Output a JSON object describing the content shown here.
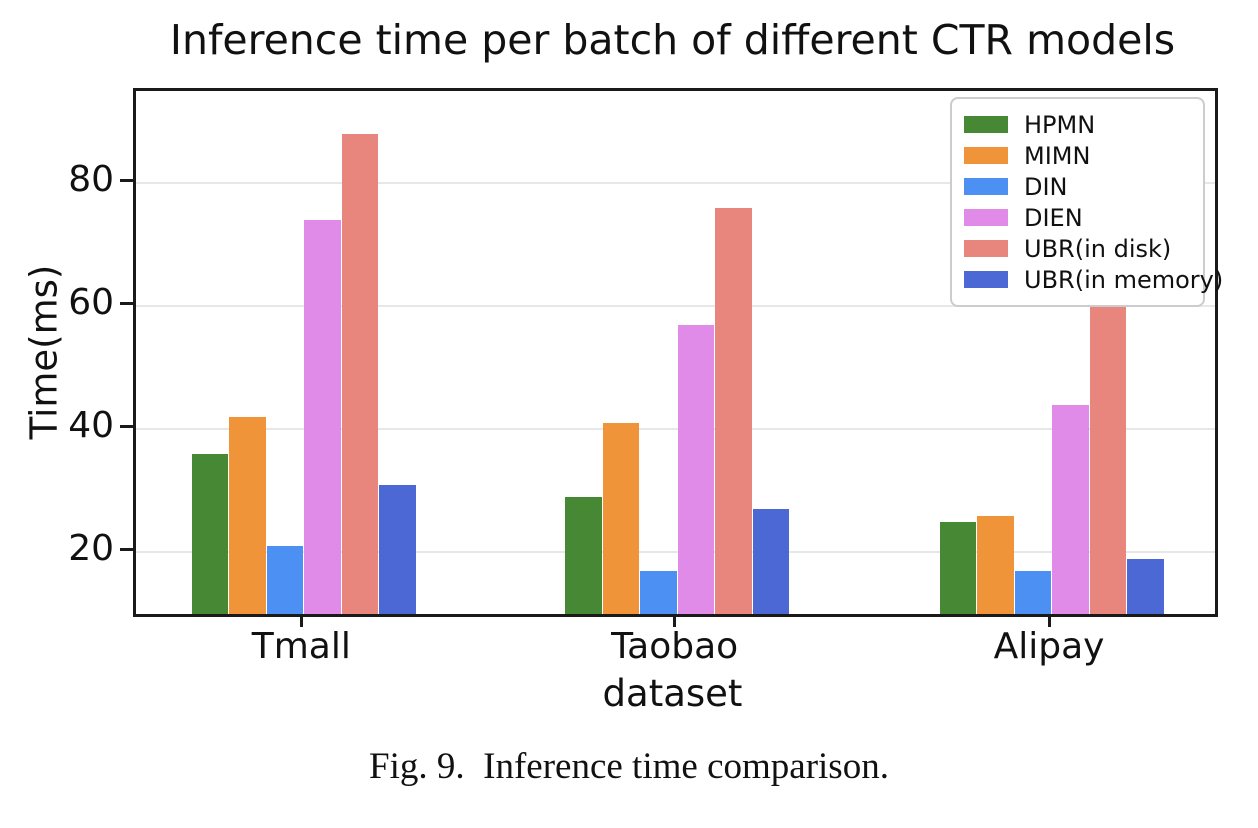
{
  "figure": {
    "title": "Inference time per batch of different CTR models",
    "caption": "Fig. 9.  Inference time comparison."
  },
  "chart_data": {
    "type": "bar",
    "title": "Inference time per batch of different CTR models",
    "xlabel": "dataset",
    "ylabel": "Time(ms)",
    "categories": [
      "Tmall",
      "Taobao",
      "Alipay"
    ],
    "series": [
      {
        "name": "HPMN",
        "color": "#478834",
        "values": [
          36,
          29,
          25
        ]
      },
      {
        "name": "MIMN",
        "color": "#f0943a",
        "values": [
          42,
          41,
          26
        ]
      },
      {
        "name": "DIN",
        "color": "#4b90f2",
        "values": [
          21,
          17,
          17
        ]
      },
      {
        "name": "DIEN",
        "color": "#e08be8",
        "values": [
          74,
          57,
          44
        ]
      },
      {
        "name": "UBR(in disk)",
        "color": "#e8857c",
        "values": [
          88,
          76,
          60
        ]
      },
      {
        "name": "UBR(in memory)",
        "color": "#4b68d4",
        "values": [
          31,
          27,
          19
        ]
      }
    ],
    "yticks": [
      20,
      40,
      60,
      80
    ],
    "ylim": [
      10,
      95
    ],
    "grid": true,
    "legend_position": "upper right",
    "colors": {
      "grid": "#e7e7e7",
      "spine": "#1a1a1a",
      "background": "#ffffff"
    }
  }
}
